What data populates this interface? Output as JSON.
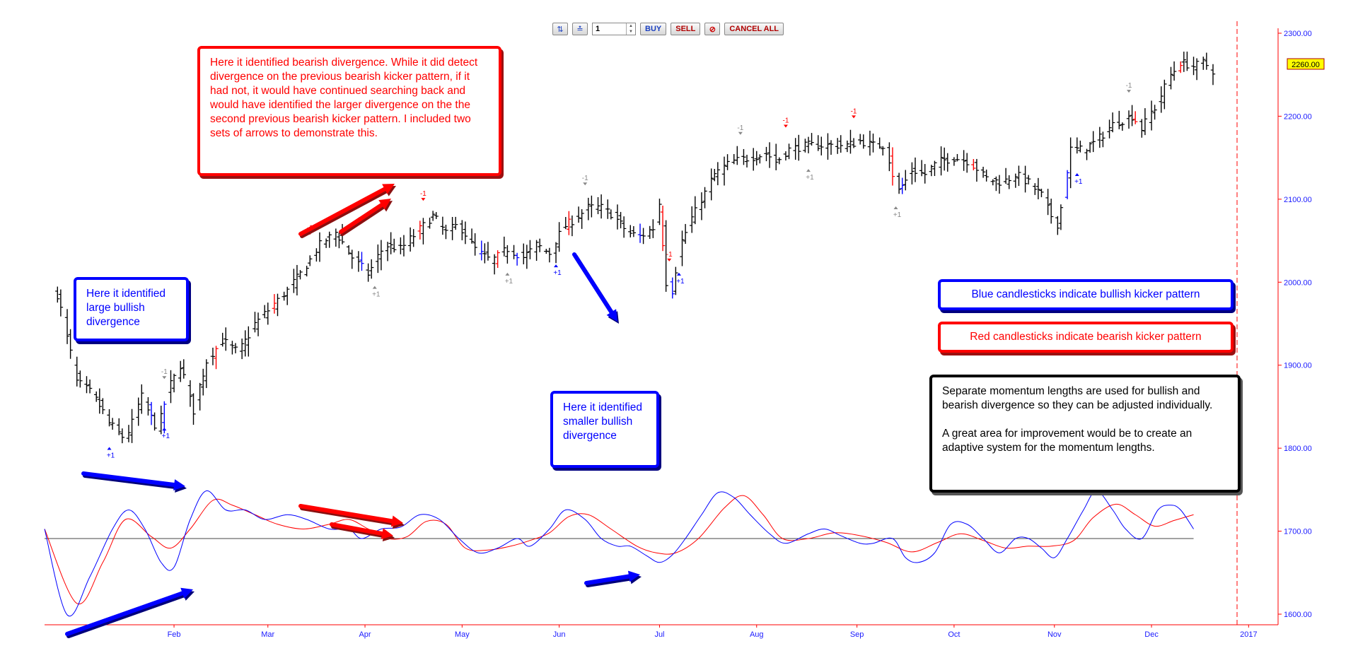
{
  "toolbar": {
    "quantity": "1",
    "buy_label": "BUY",
    "sell_label": "SELL",
    "cancel_all_label": "CANCEL ALL"
  },
  "annotations": {
    "bearish_note": "Here it identified bearish divergence. While it did detect divergence on the previous bearish kicker pattern, if it had not, it would have continued searching back and would have identified the larger divergence on the the second previous bearish kicker pattern. I included two sets of arrows to demonstrate this.",
    "large_bullish_note": "Here it identified large bullish divergence",
    "smaller_bullish_note": "Here it identified smaller bullish divergence",
    "blue_legend": "Blue candlesticks indicate bullish kicker pattern",
    "red_legend": "Red candlesticks indicate bearish kicker pattern",
    "momentum_note": "Separate momentum lengths are used for bullish and bearish divergence so they can be adjusted individually.\n\nA great area for improvement would be to create an adaptive system for the momentum lengths."
  },
  "colors": {
    "bullish": "#0000ff",
    "bearish": "#ff0000",
    "neutral_bar": "#000000",
    "axis": "#ff0000",
    "price_tag_bg": "#ffff00"
  },
  "chart_data": {
    "type": "ohlc",
    "x_axis": {
      "labels": [
        "Feb",
        "Mar",
        "Apr",
        "May",
        "Jun",
        "Jul",
        "Aug",
        "Sep",
        "Oct",
        "Nov",
        "Dec",
        "2017"
      ],
      "label_days": [
        40,
        69,
        99,
        129,
        159,
        190,
        220,
        251,
        281,
        312,
        342,
        372
      ]
    },
    "y_axis": {
      "ticks": [
        "2300.00",
        "2200.00",
        "2100.00",
        "2000.00",
        "1900.00",
        "1800.00",
        "1700.00",
        "1600.00"
      ],
      "tick_values": [
        2300,
        2200,
        2100,
        2000,
        1900,
        1800,
        1700,
        1600
      ],
      "range": [
        1585,
        2320
      ],
      "side": "right"
    },
    "last_price": "2260.00",
    "signal_labels": {
      "bullish": "+1",
      "bearish": "-1"
    },
    "price_anchors": [
      [
        4,
        1985
      ],
      [
        10,
        1880
      ],
      [
        15,
        1865
      ],
      [
        20,
        1830
      ],
      [
        25,
        1810
      ],
      [
        30,
        1862
      ],
      [
        35,
        1820
      ],
      [
        38,
        1870
      ],
      [
        42,
        1900
      ],
      [
        46,
        1845
      ],
      [
        50,
        1905
      ],
      [
        55,
        1930
      ],
      [
        60,
        1915
      ],
      [
        65,
        1950
      ],
      [
        70,
        1970
      ],
      [
        75,
        1990
      ],
      [
        80,
        2015
      ],
      [
        85,
        2045
      ],
      [
        90,
        2060
      ],
      [
        95,
        2030
      ],
      [
        100,
        2010
      ],
      [
        105,
        2045
      ],
      [
        110,
        2040
      ],
      [
        115,
        2060
      ],
      [
        120,
        2080
      ],
      [
        124,
        2060
      ],
      [
        128,
        2070
      ],
      [
        133,
        2040
      ],
      [
        138,
        2025
      ],
      [
        143,
        2040
      ],
      [
        148,
        2030
      ],
      [
        152,
        2045
      ],
      [
        156,
        2035
      ],
      [
        160,
        2065
      ],
      [
        165,
        2080
      ],
      [
        168,
        2090
      ],
      [
        172,
        2090
      ],
      [
        176,
        2080
      ],
      [
        180,
        2060
      ],
      [
        184,
        2055
      ],
      [
        188,
        2065
      ],
      [
        190,
        2095
      ],
      [
        192,
        2000
      ],
      [
        194,
        1990
      ],
      [
        196,
        2040
      ],
      [
        199,
        2070
      ],
      [
        203,
        2100
      ],
      [
        207,
        2130
      ],
      [
        212,
        2145
      ],
      [
        218,
        2150
      ],
      [
        223,
        2155
      ],
      [
        226,
        2145
      ],
      [
        230,
        2160
      ],
      [
        236,
        2165
      ],
      [
        242,
        2165
      ],
      [
        248,
        2165
      ],
      [
        252,
        2170
      ],
      [
        256,
        2165
      ],
      [
        260,
        2165
      ],
      [
        262,
        2130
      ],
      [
        264,
        2110
      ],
      [
        268,
        2135
      ],
      [
        272,
        2130
      ],
      [
        276,
        2145
      ],
      [
        281,
        2150
      ],
      [
        286,
        2145
      ],
      [
        291,
        2125
      ],
      [
        296,
        2120
      ],
      [
        300,
        2130
      ],
      [
        304,
        2120
      ],
      [
        308,
        2105
      ],
      [
        311,
        2080
      ],
      [
        313,
        2070
      ],
      [
        315,
        2110
      ],
      [
        317,
        2160
      ],
      [
        321,
        2160
      ],
      [
        325,
        2170
      ],
      [
        330,
        2190
      ],
      [
        336,
        2200
      ],
      [
        339,
        2185
      ],
      [
        341,
        2200
      ],
      [
        344,
        2215
      ],
      [
        347,
        2245
      ],
      [
        351,
        2265
      ],
      [
        355,
        2260
      ],
      [
        358,
        2265
      ],
      [
        361,
        2255
      ]
    ],
    "kicker_bars": [
      {
        "day": 19,
        "dir": "bullish"
      },
      {
        "day": 33,
        "dir": "bullish"
      },
      {
        "day": 37,
        "dir": "bullish"
      },
      {
        "day": 47,
        "dir": "bearish"
      },
      {
        "day": 53,
        "dir": "bearish"
      },
      {
        "day": 57,
        "dir": "bearish"
      },
      {
        "day": 71,
        "dir": "bearish"
      },
      {
        "day": 83,
        "dir": "bearish"
      },
      {
        "day": 93,
        "dir": "bullish"
      },
      {
        "day": 98,
        "dir": "bullish"
      },
      {
        "day": 116,
        "dir": "bearish"
      },
      {
        "day": 128,
        "dir": "bullish"
      },
      {
        "day": 135,
        "dir": "bullish"
      },
      {
        "day": 140,
        "dir": "bearish"
      },
      {
        "day": 146,
        "dir": "bullish"
      },
      {
        "day": 162,
        "dir": "bearish"
      },
      {
        "day": 170,
        "dir": "bullish"
      },
      {
        "day": 184,
        "dir": "bullish"
      },
      {
        "day": 191,
        "dir": "bearish"
      },
      {
        "day": 194,
        "dir": "bullish"
      },
      {
        "day": 228,
        "dir": "bullish"
      },
      {
        "day": 244,
        "dir": "bearish"
      },
      {
        "day": 262,
        "dir": "bearish"
      },
      {
        "day": 265,
        "dir": "bullish"
      },
      {
        "day": 287,
        "dir": "bearish"
      },
      {
        "day": 296,
        "dir": "bullish"
      },
      {
        "day": 312,
        "dir": "bullish"
      },
      {
        "day": 316,
        "dir": "bullish"
      },
      {
        "day": 337,
        "dir": "bearish"
      },
      {
        "day": 351,
        "dir": "bearish"
      }
    ],
    "signals": [
      {
        "day": 20,
        "dir": "bullish",
        "color": "#0000ff"
      },
      {
        "day": 37,
        "dir": "bullish",
        "color": "#0000ff"
      },
      {
        "day": 37,
        "dir": "bearish",
        "color": "#888888"
      },
      {
        "day": 82,
        "dir": "bearish",
        "color": "#ff0000"
      },
      {
        "day": 102,
        "dir": "bullish",
        "color": "#888888"
      },
      {
        "day": 117,
        "dir": "bearish",
        "color": "#ff0000"
      },
      {
        "day": 143,
        "dir": "bullish",
        "color": "#888888"
      },
      {
        "day": 158,
        "dir": "bullish",
        "color": "#0000ff"
      },
      {
        "day": 167,
        "dir": "bearish",
        "color": "#888888"
      },
      {
        "day": 193,
        "dir": "bearish",
        "color": "#ff0000"
      },
      {
        "day": 196,
        "dir": "bullish",
        "color": "#0000ff"
      },
      {
        "day": 215,
        "dir": "bearish",
        "color": "#888888"
      },
      {
        "day": 229,
        "dir": "bearish",
        "color": "#ff0000"
      },
      {
        "day": 236,
        "dir": "bullish",
        "color": "#888888"
      },
      {
        "day": 250,
        "dir": "bearish",
        "color": "#ff0000"
      },
      {
        "day": 263,
        "dir": "bullish",
        "color": "#888888"
      },
      {
        "day": 319,
        "dir": "bullish",
        "color": "#0000ff"
      },
      {
        "day": 335,
        "dir": "bearish",
        "color": "#888888"
      }
    ],
    "momentum_fast": [
      [
        0,
        1690
      ],
      [
        7,
        1600
      ],
      [
        14,
        1640
      ],
      [
        21,
        1690
      ],
      [
        26,
        1710
      ],
      [
        31,
        1690
      ],
      [
        36,
        1655
      ],
      [
        40,
        1650
      ],
      [
        45,
        1700
      ],
      [
        50,
        1730
      ],
      [
        56,
        1710
      ],
      [
        62,
        1710
      ],
      [
        68,
        1700
      ],
      [
        75,
        1705
      ],
      [
        81,
        1700
      ],
      [
        88,
        1690
      ],
      [
        94,
        1690
      ],
      [
        98,
        1680
      ],
      [
        104,
        1690
      ],
      [
        110,
        1692
      ],
      [
        116,
        1705
      ],
      [
        122,
        1700
      ],
      [
        128,
        1680
      ],
      [
        134,
        1665
      ],
      [
        140,
        1670
      ],
      [
        146,
        1680
      ],
      [
        150,
        1672
      ],
      [
        156,
        1690
      ],
      [
        161,
        1710
      ],
      [
        167,
        1700
      ],
      [
        172,
        1680
      ],
      [
        177,
        1672
      ],
      [
        181,
        1672
      ],
      [
        186,
        1662
      ],
      [
        190,
        1655
      ],
      [
        194,
        1663
      ],
      [
        198,
        1680
      ],
      [
        203,
        1705
      ],
      [
        208,
        1728
      ],
      [
        213,
        1723
      ],
      [
        218,
        1705
      ],
      [
        224,
        1685
      ],
      [
        229,
        1675
      ],
      [
        236,
        1685
      ],
      [
        241,
        1690
      ],
      [
        246,
        1683
      ],
      [
        252,
        1675
      ],
      [
        256,
        1675
      ],
      [
        262,
        1680
      ],
      [
        266,
        1660
      ],
      [
        270,
        1655
      ],
      [
        275,
        1665
      ],
      [
        280,
        1695
      ],
      [
        285,
        1695
      ],
      [
        290,
        1680
      ],
      [
        295,
        1665
      ],
      [
        300,
        1680
      ],
      [
        304,
        1680
      ],
      [
        308,
        1670
      ],
      [
        312,
        1660
      ],
      [
        316,
        1680
      ],
      [
        321,
        1710
      ],
      [
        325,
        1730
      ],
      [
        330,
        1710
      ],
      [
        334,
        1690
      ],
      [
        339,
        1680
      ],
      [
        344,
        1710
      ],
      [
        348,
        1715
      ],
      [
        351,
        1710
      ],
      [
        355,
        1690
      ]
    ],
    "momentum_slow": [
      [
        0,
        1690
      ],
      [
        10,
        1612
      ],
      [
        18,
        1655
      ],
      [
        25,
        1700
      ],
      [
        33,
        1682
      ],
      [
        39,
        1670
      ],
      [
        45,
        1690
      ],
      [
        52,
        1720
      ],
      [
        58,
        1715
      ],
      [
        65,
        1705
      ],
      [
        72,
        1695
      ],
      [
        80,
        1690
      ],
      [
        88,
        1695
      ],
      [
        94,
        1700
      ],
      [
        100,
        1690
      ],
      [
        106,
        1680
      ],
      [
        112,
        1682
      ],
      [
        118,
        1698
      ],
      [
        124,
        1695
      ],
      [
        130,
        1670
      ],
      [
        137,
        1668
      ],
      [
        144,
        1672
      ],
      [
        150,
        1678
      ],
      [
        156,
        1686
      ],
      [
        162,
        1703
      ],
      [
        168,
        1705
      ],
      [
        175,
        1690
      ],
      [
        183,
        1672
      ],
      [
        189,
        1665
      ],
      [
        195,
        1665
      ],
      [
        202,
        1680
      ],
      [
        210,
        1712
      ],
      [
        216,
        1725
      ],
      [
        222,
        1705
      ],
      [
        228,
        1680
      ],
      [
        236,
        1680
      ],
      [
        244,
        1686
      ],
      [
        252,
        1683
      ],
      [
        260,
        1676
      ],
      [
        268,
        1666
      ],
      [
        276,
        1676
      ],
      [
        283,
        1685
      ],
      [
        290,
        1678
      ],
      [
        297,
        1670
      ],
      [
        304,
        1672
      ],
      [
        311,
        1672
      ],
      [
        318,
        1678
      ],
      [
        324,
        1702
      ],
      [
        331,
        1716
      ],
      [
        337,
        1705
      ],
      [
        343,
        1693
      ],
      [
        349,
        1699
      ],
      [
        355,
        1705
      ]
    ],
    "momentum_zero": 1680
  }
}
